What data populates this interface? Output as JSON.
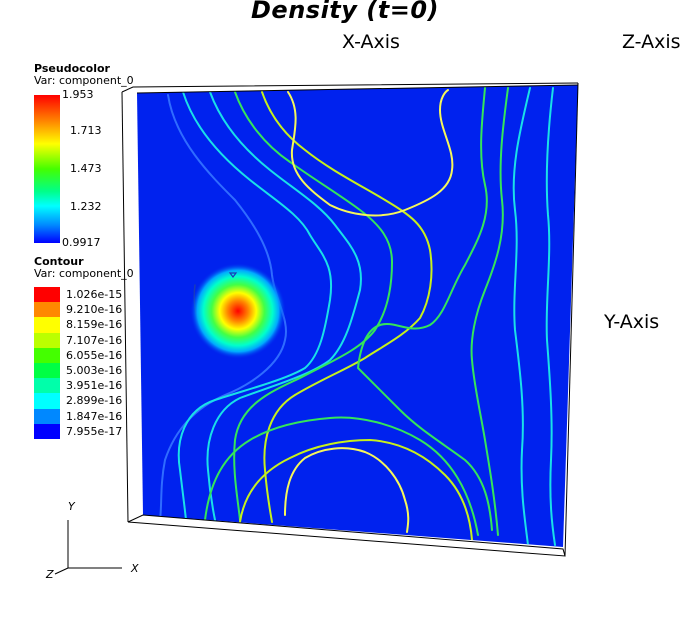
{
  "title": "Density (t=0)",
  "axes": {
    "x": "X-Axis",
    "y": "Y-Axis",
    "z": "Z-Axis"
  },
  "pseudocolor": {
    "title": "Pseudocolor",
    "variable": "Var: component_0",
    "ticks": [
      "1.953",
      "1.713",
      "1.473",
      "1.232",
      "0.9917"
    ]
  },
  "contour": {
    "title": "Contour",
    "variable": "Var: component_0",
    "levels": [
      {
        "label": "1.026e-15",
        "color": "#ff0000"
      },
      {
        "label": "9.210e-16",
        "color": "#ff8800"
      },
      {
        "label": "8.159e-16",
        "color": "#ffff00"
      },
      {
        "label": "7.107e-16",
        "color": "#bbff00"
      },
      {
        "label": "6.055e-16",
        "color": "#44ff00"
      },
      {
        "label": "5.003e-16",
        "color": "#00ff44"
      },
      {
        "label": "3.951e-16",
        "color": "#00ffaa"
      },
      {
        "label": "2.899e-16",
        "color": "#00ffff"
      },
      {
        "label": "1.847e-16",
        "color": "#0088ff"
      },
      {
        "label": "7.955e-17",
        "color": "#0000ff"
      }
    ]
  },
  "triad": {
    "x": "X",
    "y": "Y",
    "z": "Z"
  },
  "colors": {
    "background": "#0022ee",
    "frame": "#000000"
  }
}
